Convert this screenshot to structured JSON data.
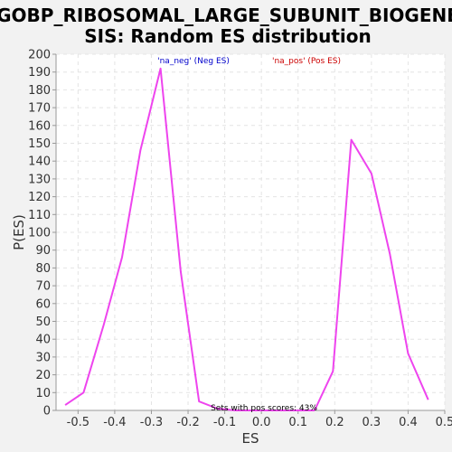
{
  "chart_data": {
    "type": "line",
    "title_lines": [
      "GOBP_RIBOSOMAL_LARGE_SUBUNIT_BIOGENE",
      "SIS: Random ES distribution"
    ],
    "xlabel": "ES",
    "ylabel": "P(ES)",
    "xlim": [
      -0.56,
      0.5
    ],
    "ylim": [
      0,
      200
    ],
    "x_ticks": [
      -0.5,
      -0.4,
      -0.3,
      -0.2,
      -0.1,
      0.0,
      0.1,
      0.2,
      0.3,
      0.4,
      0.5
    ],
    "x_tick_labels": [
      "-0.5",
      "-0.4",
      "-0.3",
      "-0.2",
      "-0.1",
      "0.0",
      "0.1",
      "0.2",
      "0.3",
      "0.4",
      "0.5"
    ],
    "y_ticks": [
      0,
      10,
      20,
      30,
      40,
      50,
      60,
      70,
      80,
      90,
      100,
      110,
      120,
      130,
      140,
      150,
      160,
      170,
      180,
      190,
      200
    ],
    "grid": true,
    "legend": {
      "neg_label": "'na_neg' (Neg ES)",
      "pos_label": "'na_pos' (Pos ES)",
      "neg_color": "#0000cc",
      "pos_color": "#cc0000",
      "placement": "top-center"
    },
    "annotation": "Sets with pos scores: 43%",
    "line_color": "#ee44ee",
    "series": [
      {
        "x": [
          -0.535,
          -0.485,
          -0.43,
          -0.38,
          -0.33,
          -0.275,
          -0.22,
          -0.17,
          -0.12,
          -0.07,
          -0.02,
          0.03,
          0.08,
          0.145
        ],
        "y": [
          3,
          10,
          48,
          86,
          146,
          192,
          78,
          5,
          1,
          0,
          0,
          0,
          0,
          0
        ]
      },
      {
        "x": [
          0.145,
          0.195,
          0.245,
          0.3,
          0.35,
          0.4,
          0.455
        ],
        "y": [
          0,
          22,
          152,
          133,
          88,
          32,
          6
        ]
      }
    ]
  }
}
